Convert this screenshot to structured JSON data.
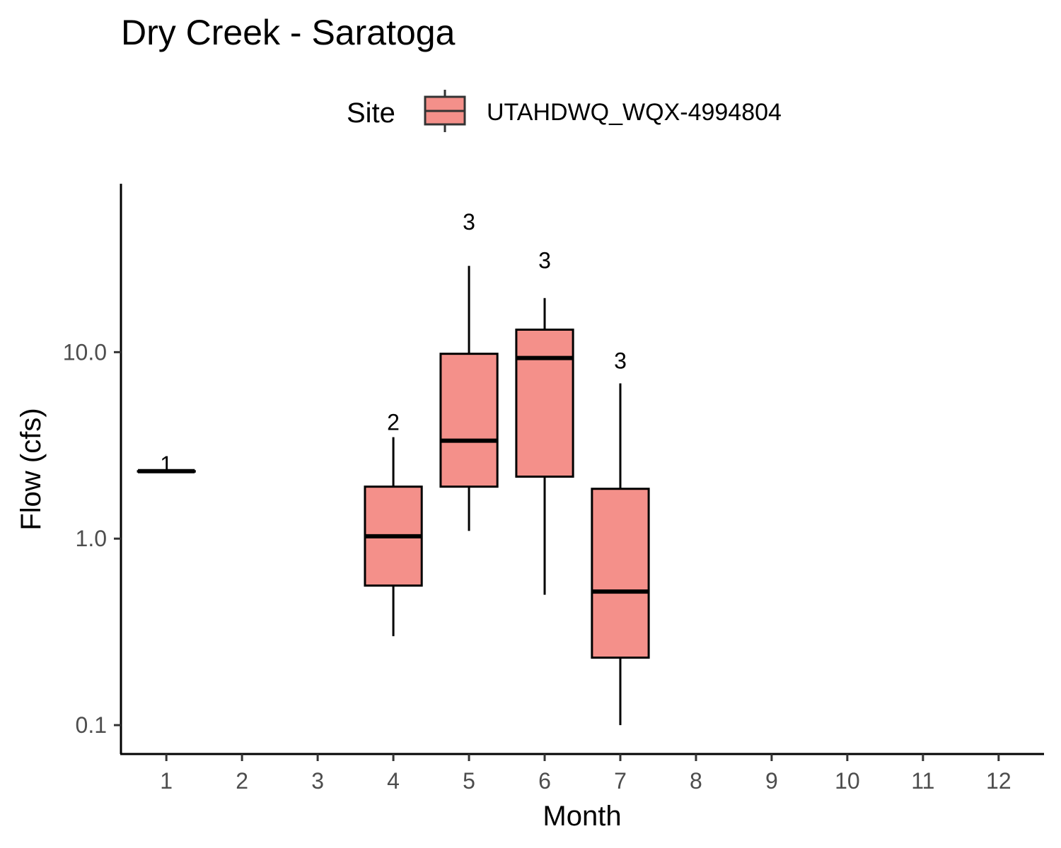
{
  "chart_data": {
    "type": "boxplot",
    "title": "Dry Creek - Saratoga",
    "xlabel": "Month",
    "ylabel": "Flow (cfs)",
    "yscale": "log10",
    "ylim": [
      0.07,
      80
    ],
    "xlim": [
      0.4,
      12.6
    ],
    "y_ticks": [
      {
        "value": 0.1,
        "label": "0.1"
      },
      {
        "value": 1,
        "label": "1.0"
      },
      {
        "value": 10,
        "label": "10.0"
      }
    ],
    "x_ticks": [
      {
        "value": 1,
        "label": "1"
      },
      {
        "value": 2,
        "label": "2"
      },
      {
        "value": 3,
        "label": "3"
      },
      {
        "value": 4,
        "label": "4"
      },
      {
        "value": 5,
        "label": "5"
      },
      {
        "value": 6,
        "label": "6"
      },
      {
        "value": 7,
        "label": "7"
      },
      {
        "value": 8,
        "label": "8"
      },
      {
        "value": 9,
        "label": "9"
      },
      {
        "value": 10,
        "label": "10"
      },
      {
        "value": 11,
        "label": "11"
      },
      {
        "value": 12,
        "label": "12"
      }
    ],
    "legend": {
      "title": "Site",
      "position": "top",
      "entries": [
        {
          "label": "UTAHDWQ_WQX-4994804",
          "color": "#f8766d"
        }
      ]
    },
    "grid": false,
    "fill_color": "#f4908a",
    "line_color": "#000000",
    "series": [
      {
        "name": "UTAHDWQ_WQX-4994804",
        "boxes": [
          {
            "month": 1,
            "min": 2.3,
            "q1": 2.3,
            "median": 2.3,
            "q3": 2.3,
            "max": 2.3,
            "n": "1",
            "n_value": 2.5
          },
          {
            "month": 4,
            "min": 0.3,
            "q1": 0.56,
            "median": 1.03,
            "q3": 1.9,
            "max": 3.5,
            "n": "2",
            "n_value": 4.2
          },
          {
            "month": 5,
            "min": 1.1,
            "q1": 1.9,
            "median": 3.35,
            "q3": 9.8,
            "max": 29,
            "n": "3",
            "n_value": 50
          },
          {
            "month": 6,
            "min": 0.5,
            "q1": 2.15,
            "median": 9.3,
            "q3": 13.2,
            "max": 19.5,
            "n": "3",
            "n_value": 31
          },
          {
            "month": 7,
            "min": 0.1,
            "q1": 0.23,
            "median": 0.52,
            "q3": 1.85,
            "max": 6.8,
            "n": "3",
            "n_value": 9
          }
        ]
      }
    ]
  }
}
